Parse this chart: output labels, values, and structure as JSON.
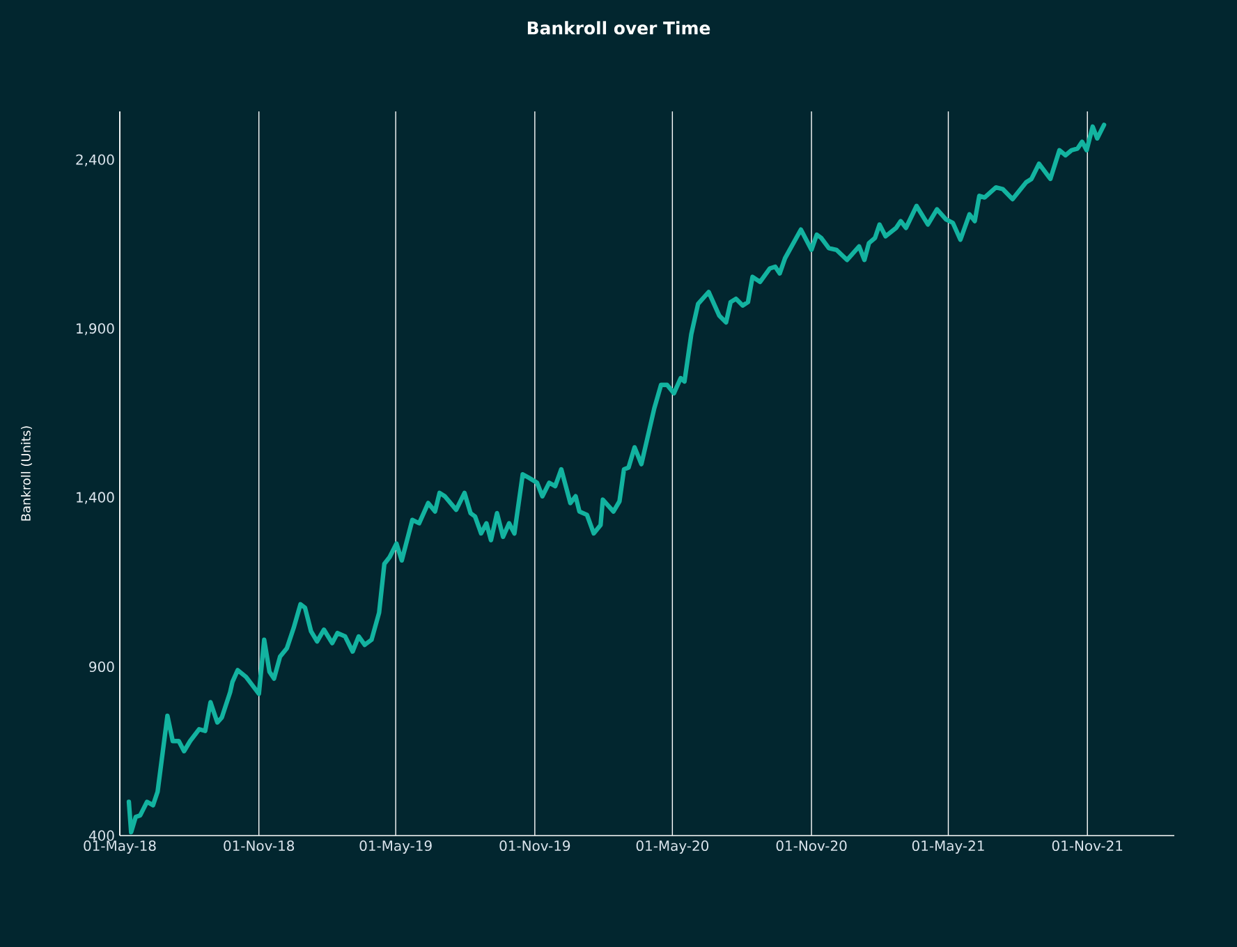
{
  "chart_data": {
    "type": "line",
    "title": "Bankroll over Time",
    "ylabel": "Bankroll  (Units)",
    "grid": "x",
    "legend": false,
    "marker": "none",
    "line_style": "solid",
    "xlim": [
      "2018-05-01",
      "2022-02-24"
    ],
    "ylim": [
      400,
      2545
    ],
    "xticks": [
      {
        "value": "2018-05-01",
        "label": "01-May-18"
      },
      {
        "value": "2018-11-01",
        "label": "01-Nov-18"
      },
      {
        "value": "2019-05-01",
        "label": "01-May-19"
      },
      {
        "value": "2019-11-01",
        "label": "01-Nov-19"
      },
      {
        "value": "2020-05-01",
        "label": "01-May-20"
      },
      {
        "value": "2020-11-01",
        "label": "01-Nov-20"
      },
      {
        "value": "2021-05-01",
        "label": "01-May-21"
      },
      {
        "value": "2021-11-01",
        "label": "01-Nov-21"
      }
    ],
    "yticks": [
      400,
      900,
      {
        "value": 1400,
        "label": "1,400"
      },
      {
        "value": 1900,
        "label": "1,900"
      },
      {
        "value": 2400,
        "label": "2,400"
      }
    ],
    "x": [
      "2018-05-13",
      "2018-05-16",
      "2018-05-22",
      "2018-05-28",
      "2018-06-06",
      "2018-06-14",
      "2018-06-20",
      "2018-07-03",
      "2018-07-10",
      "2018-07-18",
      "2018-07-25",
      "2018-08-02",
      "2018-08-14",
      "2018-08-22",
      "2018-08-29",
      "2018-09-07",
      "2018-09-13",
      "2018-09-24",
      "2018-09-27",
      "2018-10-04",
      "2018-10-15",
      "2018-11-01",
      "2018-11-08",
      "2018-11-15",
      "2018-11-21",
      "2018-11-29",
      "2018-12-08",
      "2018-12-17",
      "2018-12-26",
      "2019-01-01",
      "2019-01-09",
      "2019-01-17",
      "2019-01-26",
      "2019-02-06",
      "2019-02-13",
      "2019-02-23",
      "2019-03-05",
      "2019-03-13",
      "2019-03-21",
      "2019-03-30",
      "2019-04-09",
      "2019-04-16",
      "2019-04-23",
      "2019-05-02",
      "2019-05-09",
      "2019-05-23",
      "2019-06-01",
      "2019-06-13",
      "2019-06-22",
      "2019-06-28",
      "2019-07-05",
      "2019-07-20",
      "2019-07-31",
      "2019-08-08",
      "2019-08-14",
      "2019-08-22",
      "2019-08-29",
      "2019-09-04",
      "2019-09-12",
      "2019-09-20",
      "2019-09-28",
      "2019-10-05",
      "2019-10-16",
      "2019-10-24",
      "2019-11-04",
      "2019-11-11",
      "2019-11-20",
      "2019-11-28",
      "2019-12-06",
      "2019-12-18",
      "2019-12-25",
      "2019-12-30",
      "2020-01-09",
      "2020-01-18",
      "2020-01-27",
      "2020-01-30",
      "2020-02-13",
      "2020-02-21",
      "2020-02-27",
      "2020-03-04",
      "2020-03-12",
      "2020-03-21",
      "2020-04-07",
      "2020-04-16",
      "2020-04-24",
      "2020-05-03",
      "2020-05-12",
      "2020-05-17",
      "2020-05-26",
      "2020-06-04",
      "2020-06-18",
      "2020-07-02",
      "2020-07-11",
      "2020-07-17",
      "2020-07-24",
      "2020-08-02",
      "2020-08-09",
      "2020-08-15",
      "2020-08-25",
      "2020-09-07",
      "2020-09-14",
      "2020-09-20",
      "2020-09-27",
      "2020-10-18",
      "2020-11-01",
      "2020-11-08",
      "2020-11-14",
      "2020-11-24",
      "2020-12-04",
      "2020-12-18",
      "2021-01-03",
      "2021-01-10",
      "2021-01-16",
      "2021-01-24",
      "2021-01-30",
      "2021-02-07",
      "2021-02-21",
      "2021-02-27",
      "2021-03-06",
      "2021-03-20",
      "2021-04-04",
      "2021-04-16",
      "2021-04-28",
      "2021-05-07",
      "2021-05-17",
      "2021-05-29",
      "2021-06-05",
      "2021-06-11",
      "2021-06-18",
      "2021-07-03",
      "2021-07-12",
      "2021-07-25",
      "2021-08-12",
      "2021-08-19",
      "2021-08-29",
      "2021-09-13",
      "2021-09-25",
      "2021-10-03",
      "2021-10-11",
      "2021-10-19",
      "2021-10-25",
      "2021-10-31",
      "2021-11-08",
      "2021-11-14",
      "2021-11-23"
    ],
    "series": [
      {
        "color": "#13b3a0",
        "values": [
          500,
          410,
          455,
          460,
          500,
          490,
          530,
          755,
          680,
          680,
          650,
          680,
          715,
          710,
          795,
          735,
          750,
          825,
          855,
          890,
          870,
          820,
          980,
          885,
          865,
          930,
          955,
          1015,
          1085,
          1075,
          1005,
          975,
          1010,
          970,
          1000,
          990,
          945,
          990,
          965,
          980,
          1060,
          1205,
          1225,
          1265,
          1215,
          1335,
          1325,
          1385,
          1360,
          1415,
          1405,
          1365,
          1415,
          1355,
          1345,
          1295,
          1325,
          1275,
          1355,
          1285,
          1325,
          1295,
          1470,
          1460,
          1445,
          1405,
          1445,
          1435,
          1485,
          1385,
          1405,
          1360,
          1350,
          1295,
          1320,
          1395,
          1360,
          1390,
          1485,
          1490,
          1550,
          1500,
          1665,
          1735,
          1735,
          1710,
          1755,
          1745,
          1885,
          1975,
          2010,
          1940,
          1920,
          1980,
          1990,
          1970,
          1980,
          2055,
          2040,
          2080,
          2085,
          2065,
          2110,
          2195,
          2135,
          2180,
          2170,
          2140,
          2135,
          2105,
          2145,
          2105,
          2155,
          2170,
          2210,
          2175,
          2200,
          2220,
          2200,
          2265,
          2210,
          2255,
          2225,
          2215,
          2165,
          2240,
          2220,
          2295,
          2290,
          2320,
          2315,
          2285,
          2335,
          2345,
          2390,
          2345,
          2430,
          2415,
          2430,
          2435,
          2455,
          2430,
          2500,
          2465,
          2505
        ]
      }
    ]
  }
}
